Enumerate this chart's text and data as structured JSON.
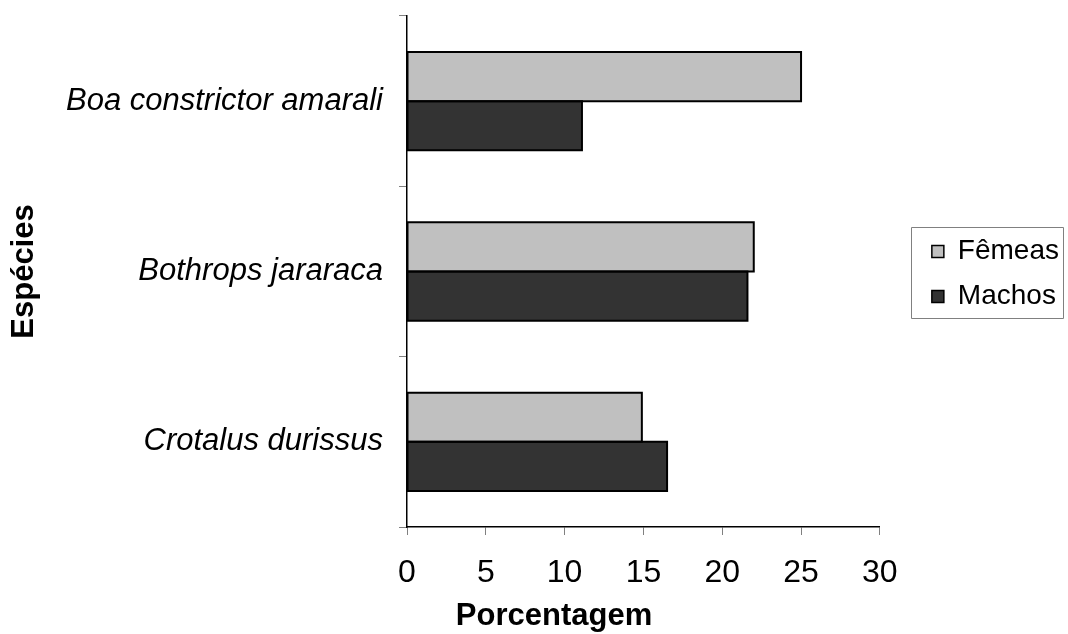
{
  "chart_data": {
    "type": "bar",
    "orientation": "horizontal",
    "xlabel": "Porcentagem",
    "ylabel": "Espécies",
    "categories": [
      "Boa constrictor amarali",
      "Bothrops jararaca",
      "Crotalus durissus"
    ],
    "series": [
      {
        "name": "Fêmeas",
        "color": "#c0c0c0",
        "values": [
          25,
          22,
          14.9
        ]
      },
      {
        "name": "Machos",
        "color": "#333333",
        "values": [
          11.1,
          21.6,
          16.5
        ]
      }
    ],
    "xlim": [
      0,
      30
    ],
    "xticks": [
      0,
      5,
      10,
      15,
      20,
      25,
      30
    ],
    "grid": false,
    "legend": "right"
  }
}
